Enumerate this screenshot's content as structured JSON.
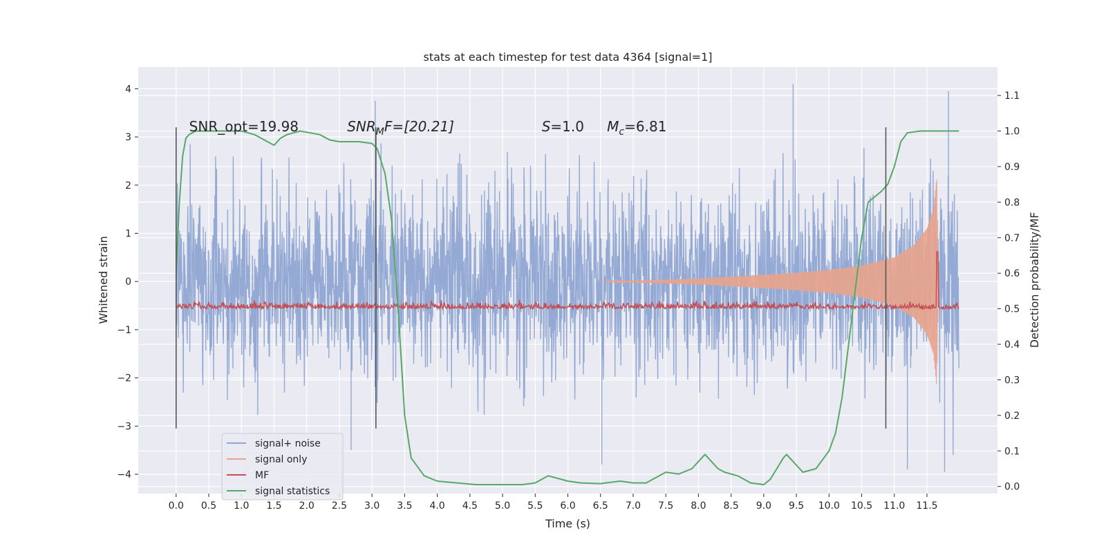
{
  "chart_data": {
    "type": "line",
    "title": "stats at each timestep for test data 4364 [signal=1]",
    "xlabel": "Time (s)",
    "ylabel": "Whitened strain",
    "y2label": "Detection probability/MF",
    "xlim": [
      -0.58,
      12.58
    ],
    "ylim": [
      -4.4,
      4.45
    ],
    "y2lim": [
      -0.02,
      1.18
    ],
    "xticks": [
      0.0,
      0.5,
      1.0,
      1.5,
      2.0,
      2.5,
      3.0,
      3.5,
      4.0,
      4.5,
      5.0,
      5.5,
      6.0,
      6.5,
      7.0,
      7.5,
      8.0,
      8.5,
      9.0,
      9.5,
      10.0,
      10.5,
      11.0,
      11.5
    ],
    "xtick_labels": [
      "0.0",
      "0.5",
      "1.0",
      "1.5",
      "2.0",
      "2.5",
      "3.0",
      "3.5",
      "4.0",
      "4.5",
      "5.0",
      "5.5",
      "6.0",
      "6.5",
      "7.0",
      "7.5",
      "8.0",
      "8.5",
      "9.0",
      "9.5",
      "10.0",
      "10.5",
      "11.0",
      "11.5"
    ],
    "yticks": [
      -4,
      -3,
      -2,
      -1,
      0,
      1,
      2,
      3,
      4
    ],
    "ytick_labels": [
      "−4",
      "−3",
      "−2",
      "−1",
      "0",
      "1",
      "2",
      "3",
      "4"
    ],
    "y2ticks": [
      0.0,
      0.1,
      0.2,
      0.3,
      0.4,
      0.5,
      0.6,
      0.7,
      0.8,
      0.9,
      1.0,
      1.1
    ],
    "y2tick_labels": [
      "0.0",
      "0.1",
      "0.2",
      "0.3",
      "0.4",
      "0.5",
      "0.6",
      "0.7",
      "0.8",
      "0.9",
      "1.0",
      "1.1"
    ],
    "grid": true,
    "legend_position": "lower-left",
    "annotations": [
      {
        "text": "SNR_opt=19.98",
        "x": 0.2,
        "y": 3.2
      },
      {
        "text": "SNR_MF=[20.21]",
        "base": "SNR",
        "sub": "M",
        "rest": "F=[20.21]",
        "x": 2.62,
        "y": 3.2
      },
      {
        "text": "S=1.0",
        "base": "S",
        "sub": "",
        "rest": "=1.0",
        "x": 5.6,
        "y": 3.2
      },
      {
        "text": "M_c=6.81",
        "base": "M",
        "sub": "c",
        "rest": "=6.81",
        "x": 6.6,
        "y": 3.2
      }
    ],
    "vlines": {
      "x": [
        0.0,
        3.06,
        10.87
      ],
      "ymin": -3.05,
      "ymax": 3.2,
      "color": "#555555"
    },
    "series": [
      {
        "name": "signal+ noise",
        "color": "#8fa6d2",
        "axis": "left",
        "x_range": [
          0.0,
          11.99
        ],
        "std": 0.95,
        "peaks": [
          {
            "x": 9.45,
            "y": 4.1
          },
          {
            "x": 11.83,
            "y": 3.95
          },
          {
            "x": 3.05,
            "y": 3.75
          },
          {
            "x": 6.52,
            "y": -3.8
          },
          {
            "x": 11.77,
            "y": -3.95
          },
          {
            "x": 11.2,
            "y": -3.9
          },
          {
            "x": 2.68,
            "y": -3.5
          }
        ]
      },
      {
        "name": "signal only",
        "color": "#e8a38c",
        "axis": "left",
        "x_range": [
          6.5,
          11.68
        ],
        "envelope": [
          [
            6.5,
            0.0
          ],
          [
            7.0,
            0.02
          ],
          [
            7.5,
            0.04
          ],
          [
            8.0,
            0.06
          ],
          [
            8.5,
            0.1
          ],
          [
            9.0,
            0.14
          ],
          [
            9.5,
            0.18
          ],
          [
            10.0,
            0.24
          ],
          [
            10.5,
            0.33
          ],
          [
            11.0,
            0.5
          ],
          [
            11.3,
            0.75
          ],
          [
            11.5,
            1.1
          ],
          [
            11.6,
            1.5
          ],
          [
            11.65,
            2.2
          ],
          [
            11.68,
            0.0
          ]
        ]
      },
      {
        "name": "MF",
        "color": "#c44e52",
        "axis": "right",
        "x_range": [
          0.0,
          11.99
        ],
        "baseline": 0.5,
        "spike": {
          "x": 11.66,
          "y": 0.66
        }
      },
      {
        "name": "signal statistics",
        "color": "#55a868",
        "axis": "right",
        "x": [
          0.0,
          0.05,
          0.1,
          0.15,
          0.2,
          0.3,
          0.5,
          1.0,
          1.2,
          1.4,
          1.5,
          1.6,
          1.7,
          1.9,
          2.2,
          2.35,
          2.5,
          2.8,
          3.0,
          3.08,
          3.2,
          3.3,
          3.4,
          3.5,
          3.6,
          3.8,
          4.0,
          4.3,
          4.6,
          5.0,
          5.3,
          5.5,
          5.6,
          5.7,
          5.8,
          6.0,
          6.2,
          6.5,
          6.8,
          7.0,
          7.2,
          7.3,
          7.4,
          7.5,
          7.7,
          7.9,
          8.0,
          8.1,
          8.15,
          8.2,
          8.3,
          8.4,
          8.6,
          8.8,
          9.0,
          9.1,
          9.2,
          9.3,
          9.35,
          9.4,
          9.5,
          9.6,
          9.8,
          10.0,
          10.1,
          10.2,
          10.3,
          10.4,
          10.5,
          10.6,
          10.8,
          10.9,
          11.0,
          11.1,
          11.2,
          11.4,
          11.99
        ],
        "y": [
          0.6,
          0.8,
          0.93,
          0.98,
          0.99,
          1.0,
          1.0,
          1.0,
          0.99,
          0.97,
          0.96,
          0.98,
          0.99,
          1.0,
          0.99,
          0.975,
          0.97,
          0.97,
          0.965,
          0.95,
          0.88,
          0.75,
          0.5,
          0.2,
          0.08,
          0.03,
          0.015,
          0.01,
          0.005,
          0.005,
          0.005,
          0.01,
          0.02,
          0.03,
          0.025,
          0.015,
          0.01,
          0.008,
          0.015,
          0.01,
          0.01,
          0.02,
          0.03,
          0.04,
          0.035,
          0.05,
          0.07,
          0.09,
          0.08,
          0.07,
          0.05,
          0.04,
          0.03,
          0.01,
          0.005,
          0.02,
          0.05,
          0.08,
          0.09,
          0.08,
          0.06,
          0.04,
          0.05,
          0.1,
          0.15,
          0.25,
          0.4,
          0.55,
          0.7,
          0.8,
          0.83,
          0.85,
          0.9,
          0.97,
          0.995,
          1.0,
          1.0
        ]
      }
    ]
  }
}
